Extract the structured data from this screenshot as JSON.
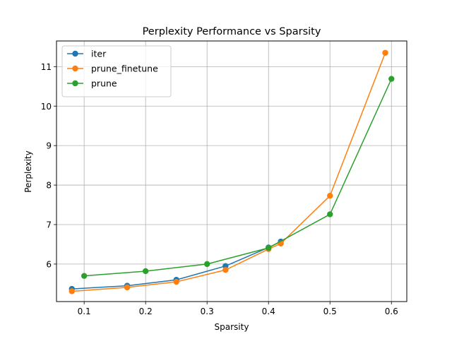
{
  "chart_data": {
    "type": "line",
    "title": "Perplexity Performance vs Sparsity",
    "xlabel": "Sparsity",
    "ylabel": "Perplexity",
    "xlim": [
      0.055,
      0.625
    ],
    "ylim": [
      5.05,
      11.65
    ],
    "xticks": [
      0.1,
      0.2,
      0.3,
      0.4,
      0.5,
      0.6
    ],
    "xtick_labels": [
      "0.1",
      "0.2",
      "0.3",
      "0.4",
      "0.5",
      "0.6"
    ],
    "yticks": [
      6,
      7,
      8,
      9,
      10,
      11
    ],
    "ytick_labels": [
      "6",
      "7",
      "8",
      "9",
      "10",
      "11"
    ],
    "grid": true,
    "legend_position": "top-left",
    "series": [
      {
        "name": "iter",
        "color": "#1f77b4",
        "marker": "circle",
        "x": [
          0.08,
          0.17,
          0.25,
          0.33,
          0.4,
          0.42
        ],
        "y": [
          5.37,
          5.45,
          5.6,
          5.95,
          6.42,
          6.57
        ]
      },
      {
        "name": "prune_finetune",
        "color": "#ff7f0e",
        "marker": "circle",
        "x": [
          0.08,
          0.17,
          0.25,
          0.33,
          0.4,
          0.42,
          0.5,
          0.59
        ],
        "y": [
          5.31,
          5.41,
          5.55,
          5.85,
          6.38,
          6.52,
          7.73,
          11.35
        ]
      },
      {
        "name": "prune",
        "color": "#2ca02c",
        "marker": "circle",
        "x": [
          0.1,
          0.2,
          0.3,
          0.4,
          0.5,
          0.6
        ],
        "y": [
          5.7,
          5.82,
          6.0,
          6.41,
          7.26,
          10.69
        ]
      }
    ]
  }
}
